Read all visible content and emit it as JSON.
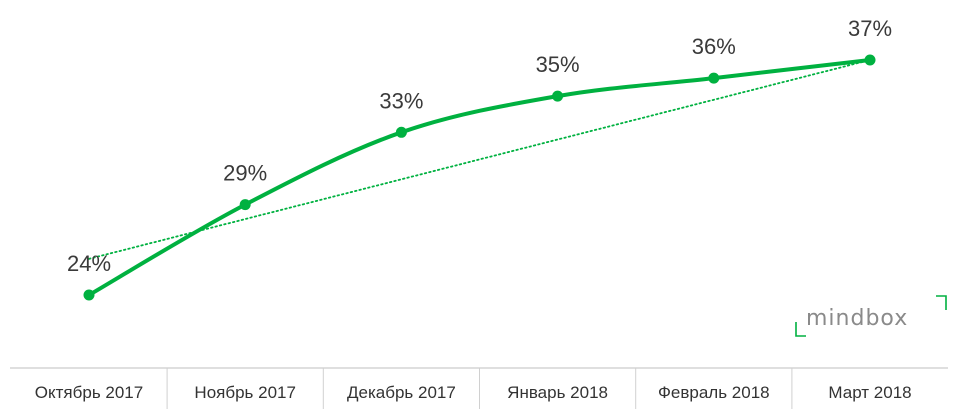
{
  "chart_data": {
    "type": "line",
    "categories": [
      "Октябрь 2017",
      "Ноябрь 2017",
      "Декабрь 2017",
      "Январь 2018",
      "Февраль 2018",
      "Март 2018"
    ],
    "series": [
      {
        "values": [
          24,
          29,
          33,
          35,
          36,
          37
        ],
        "labels": [
          "24%",
          "29%",
          "33%",
          "35%",
          "36%",
          "37%"
        ],
        "color": "#00b140"
      }
    ],
    "trendline": {
      "style": "dotted",
      "color": "#00b140",
      "values": [
        26,
        28.2,
        30.4,
        32.6,
        34.8,
        37.0
      ]
    },
    "ylim": [
      20,
      40
    ],
    "grid": false,
    "legend": "none"
  },
  "brand": {
    "name": "mindbox",
    "color": "#00b140"
  },
  "colors": {
    "axis": "#bfbfbf",
    "text": "#333333",
    "label": "#3a3a3a"
  }
}
